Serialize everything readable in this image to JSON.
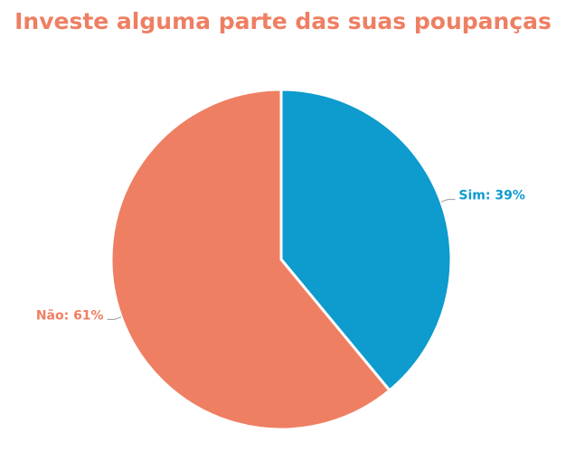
{
  "chart_data": {
    "type": "pie",
    "title": "Investe alguma parte das suas poupanças",
    "values": [
      39,
      61
    ],
    "value_labels": [
      "Sim: 39%",
      "Não: 61%"
    ],
    "colors": [
      "#0e9bce",
      "#ee7f63"
    ]
  }
}
